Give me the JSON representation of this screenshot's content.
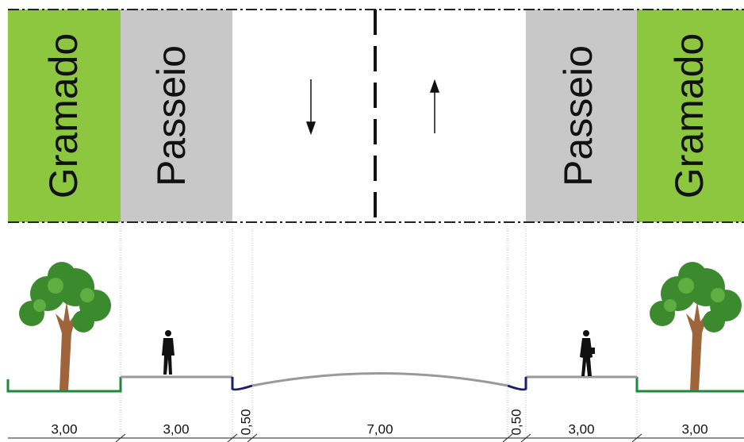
{
  "plan": {
    "zones": [
      "Gramado",
      "Passeio",
      "Passeio",
      "Gramado"
    ]
  },
  "dimensions": [
    "3,00",
    "3,00",
    "0,50",
    "7,00",
    "0,50",
    "3,00",
    "3,00"
  ]
}
